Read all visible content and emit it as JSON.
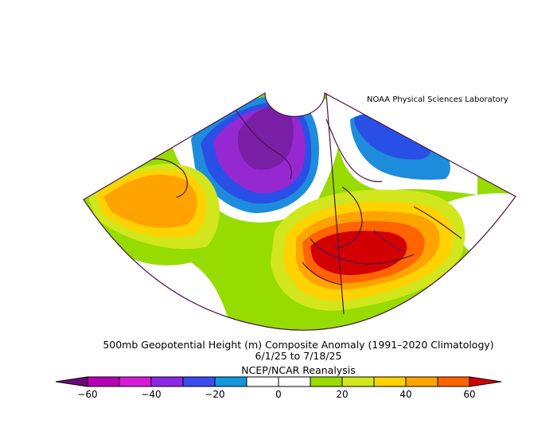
{
  "credit": "NOAA Physical Sciences Laboratory",
  "title": {
    "line1": "500mb Geopotential Height (m) Composite Anomaly (1991–2020 Climatology)",
    "line2": "6/1/25  to 7/18/25",
    "line3": "NCEP/NCAR Reanalysis"
  },
  "colorbar": {
    "tick_labels": [
      "−60",
      "−40",
      "−20",
      "0",
      "20",
      "40",
      "60"
    ],
    "levels": [
      -60,
      -50,
      -40,
      -30,
      -20,
      -10,
      0,
      10,
      20,
      30,
      40,
      50,
      60
    ],
    "colors": {
      "below_min": "#6a0a7a",
      "bins": [
        "#b400b4",
        "#d81ad8",
        "#8c28e6",
        "#3c4cf0",
        "#1496dc",
        "#ffffff",
        "#ffffff",
        "#96dc00",
        "#d2e61e",
        "#ffd200",
        "#ffa300",
        "#ff6400"
      ],
      "above_max": "#d20000"
    }
  },
  "map": {
    "colors": {
      "deep_negative": "#7a1ea6",
      "strong_negative": "#9628d2",
      "negative": "#2850e6",
      "weak_negative": "#1e8cdc",
      "weak_positive": "#96dc00",
      "moderate_positive": "#d2e61e",
      "positive": "#ffd200",
      "strong_positive": "#ffa300",
      "very_strong_positive": "#ff6400",
      "extreme_positive": "#d20000",
      "outline": "#4b1446"
    }
  }
}
